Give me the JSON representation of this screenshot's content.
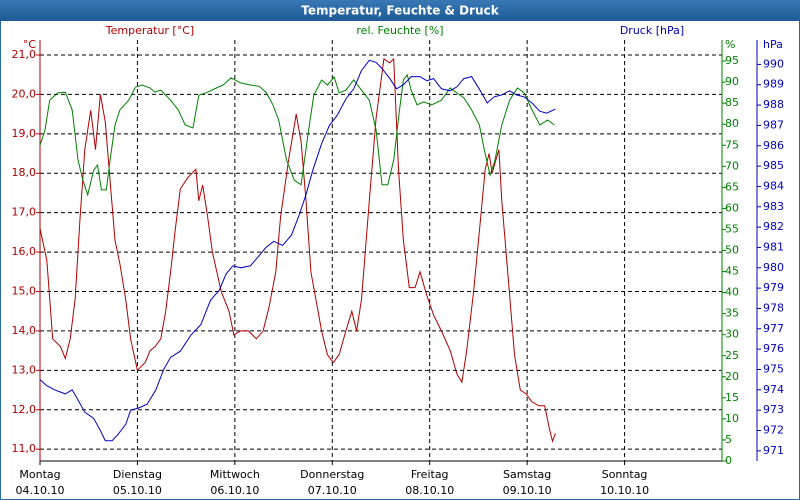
{
  "chart_data": {
    "type": "line",
    "title": "Temperatur, Feuchte & Druck",
    "xlim": [
      0,
      7
    ],
    "xticks": [
      {
        "value": 0,
        "label": "Montag"
      },
      {
        "value": 1,
        "label": "Dienstag"
      },
      {
        "value": 2,
        "label": "Mittwoch"
      },
      {
        "value": 3,
        "label": "Donnerstag"
      },
      {
        "value": 4,
        "label": "Freitag"
      },
      {
        "value": 5,
        "label": "Samstag"
      },
      {
        "value": 6,
        "label": "Sonntag"
      }
    ],
    "xtick_dates": [
      "04.10.10",
      "05.10.10",
      "06.10.10",
      "07.10.10",
      "08.10.10",
      "09.10.10",
      "10.10.10"
    ],
    "grid": true,
    "y_unit": "°C",
    "y2_unit": "%",
    "y3_unit": "hPa",
    "ylim": [
      10.7,
      21.38
    ],
    "yticks": [
      {
        "value": 11,
        "label": "11,0"
      },
      {
        "value": 12,
        "label": "12,0"
      },
      {
        "value": 13,
        "label": "13,0"
      },
      {
        "value": 14,
        "label": "14,0"
      },
      {
        "value": 15,
        "label": "15,0"
      },
      {
        "value": 16,
        "label": "16,0"
      },
      {
        "value": 17,
        "label": "17,0"
      },
      {
        "value": 18,
        "label": "18,0"
      },
      {
        "value": 19,
        "label": "19,0"
      },
      {
        "value": 20,
        "label": "20,0"
      },
      {
        "value": 21,
        "label": "21,0"
      }
    ],
    "y2lim": [
      0,
      100
    ],
    "y2ticks": [
      0,
      5,
      10,
      15,
      20,
      25,
      30,
      35,
      40,
      45,
      50,
      55,
      60,
      65,
      70,
      75,
      80,
      85,
      90,
      95
    ],
    "y3lim": [
      970.5,
      991.2
    ],
    "y3ticks": [
      971,
      972,
      973,
      974,
      975,
      976,
      977,
      978,
      979,
      980,
      981,
      982,
      983,
      984,
      985,
      986,
      987,
      988,
      989,
      990
    ],
    "series": [
      {
        "name": "Temperatur [°C]",
        "color": "#b00000",
        "axis": "y",
        "x": [
          0,
          0.07,
          0.13,
          0.21,
          0.26,
          0.31,
          0.36,
          0.41,
          0.46,
          0.52,
          0.57,
          0.62,
          0.67,
          0.72,
          0.77,
          0.82,
          0.88,
          0.93,
          1.0,
          1.08,
          1.13,
          1.18,
          1.24,
          1.29,
          1.34,
          1.39,
          1.44,
          1.52,
          1.6,
          1.63,
          1.67,
          1.72,
          1.77,
          1.86,
          1.94,
          1.99,
          2.06,
          2.14,
          2.22,
          2.29,
          2.35,
          2.42,
          2.47,
          2.55,
          2.63,
          2.68,
          2.73,
          2.78,
          2.89,
          2.95,
          3.01,
          3.07,
          3.14,
          3.2,
          3.25,
          3.3,
          3.38,
          3.45,
          3.53,
          3.59,
          3.63,
          3.68,
          3.73,
          3.79,
          3.85,
          3.9,
          3.97,
          4.04,
          4.12,
          4.21,
          4.28,
          4.33,
          4.38,
          4.45,
          4.52,
          4.57,
          4.61,
          4.64,
          4.71,
          4.74,
          4.8,
          4.87,
          4.93,
          4.99,
          5.05,
          5.12,
          5.18,
          5.23,
          5.26,
          5.29
        ],
        "values": [
          16.6,
          15.8,
          13.8,
          13.6,
          13.3,
          13.8,
          14.8,
          16.8,
          18.6,
          19.6,
          18.6,
          20.0,
          19.3,
          17.8,
          16.3,
          15.7,
          14.8,
          13.8,
          13.0,
          13.2,
          13.5,
          13.6,
          13.8,
          14.5,
          15.5,
          16.6,
          17.6,
          17.9,
          18.1,
          17.3,
          17.7,
          16.9,
          16.0,
          15.0,
          14.5,
          13.9,
          14.0,
          14.0,
          13.8,
          14.0,
          14.6,
          15.5,
          16.9,
          18.3,
          19.5,
          18.8,
          17.3,
          15.5,
          14.0,
          13.4,
          13.2,
          13.4,
          14.0,
          14.5,
          14.0,
          14.8,
          17.3,
          19.4,
          20.9,
          20.8,
          20.9,
          18.1,
          16.3,
          15.1,
          15.1,
          15.5,
          14.9,
          14.4,
          14.0,
          13.5,
          12.9,
          12.7,
          13.5,
          15.0,
          16.8,
          18.1,
          18.5,
          18.0,
          18.6,
          17.3,
          15.5,
          13.4,
          12.5,
          12.4,
          12.2,
          12.1,
          12.1,
          11.5,
          11.2,
          11.4
        ]
      },
      {
        "name": "rel. Feuchte [%]",
        "color": "#008000",
        "axis": "y2",
        "x": [
          0,
          0.05,
          0.1,
          0.18,
          0.26,
          0.33,
          0.39,
          0.44,
          0.49,
          0.55,
          0.59,
          0.63,
          0.68,
          0.72,
          0.77,
          0.82,
          0.91,
          0.98,
          1.05,
          1.13,
          1.18,
          1.24,
          1.29,
          1.34,
          1.42,
          1.49,
          1.57,
          1.63,
          1.72,
          1.81,
          1.88,
          1.96,
          2.06,
          2.16,
          2.25,
          2.32,
          2.39,
          2.45,
          2.53,
          2.61,
          2.68,
          2.75,
          2.81,
          2.89,
          2.95,
          3.02,
          3.07,
          3.14,
          3.22,
          3.3,
          3.38,
          3.45,
          3.51,
          3.57,
          3.63,
          3.69,
          3.73,
          3.77,
          3.81,
          3.87,
          3.94,
          4.02,
          4.12,
          4.21,
          4.28,
          4.35,
          4.43,
          4.51,
          4.56,
          4.62,
          4.67,
          4.74,
          4.82,
          4.9,
          4.97,
          5.05,
          5.13,
          5.21,
          5.28
        ],
        "values": [
          75,
          78.5,
          85.7,
          87.4,
          87.6,
          83.4,
          71.5,
          66.7,
          63.2,
          69,
          70.3,
          64.4,
          64.4,
          71.5,
          79.8,
          83.4,
          85.7,
          88.8,
          89.3,
          88.6,
          87.6,
          88.1,
          86.9,
          85.7,
          83.4,
          79.8,
          79.1,
          86.9,
          87.6,
          88.6,
          89.3,
          91,
          89.8,
          89.3,
          89,
          87.6,
          84.6,
          81,
          71.5,
          66.7,
          65.6,
          77.4,
          86.9,
          90.5,
          89.3,
          91.2,
          87.4,
          88.1,
          90.5,
          88.1,
          85.7,
          78.6,
          65.6,
          65.6,
          71.5,
          83.4,
          90.5,
          91.7,
          88.1,
          84.6,
          85.3,
          84.6,
          85.7,
          88.6,
          87.4,
          86.3,
          83.4,
          79.8,
          73.9,
          67.9,
          71.5,
          79.8,
          85.7,
          88.6,
          87.4,
          83.4,
          79.8,
          81,
          79.8
        ]
      },
      {
        "name": "Druck [hPa]",
        "color": "#0000c0",
        "axis": "y3",
        "x": [
          0,
          0.07,
          0.15,
          0.26,
          0.33,
          0.39,
          0.46,
          0.55,
          0.62,
          0.67,
          0.74,
          0.8,
          0.88,
          0.93,
          1.01,
          1.1,
          1.19,
          1.27,
          1.34,
          1.44,
          1.55,
          1.65,
          1.75,
          1.84,
          1.91,
          1.98,
          2.06,
          2.16,
          2.25,
          2.32,
          2.4,
          2.49,
          2.58,
          2.66,
          2.73,
          2.8,
          2.89,
          2.97,
          3.05,
          3.14,
          3.22,
          3.3,
          3.38,
          3.45,
          3.51,
          3.59,
          3.66,
          3.73,
          3.81,
          3.9,
          3.97,
          4.04,
          4.12,
          4.21,
          4.28,
          4.35,
          4.43,
          4.52,
          4.59,
          4.66,
          4.74,
          4.82,
          4.89,
          4.97,
          5.05,
          5.13,
          5.2,
          5.29
        ],
        "values": [
          974.5,
          974.2,
          974,
          973.8,
          974,
          973.5,
          972.9,
          972.6,
          972,
          971.5,
          971.5,
          971.8,
          972.3,
          973,
          973.1,
          973.3,
          974,
          975,
          975.6,
          975.9,
          976.7,
          977.2,
          978.4,
          978.9,
          979.7,
          980.1,
          980,
          980.1,
          980.6,
          981,
          981.3,
          981.1,
          981.6,
          982.6,
          983.6,
          984.8,
          986.1,
          987,
          987.5,
          988.3,
          988.8,
          989.7,
          990.2,
          990.1,
          989.8,
          989.3,
          988.8,
          989,
          989.4,
          989.4,
          989.2,
          989.3,
          988.8,
          988.7,
          988.9,
          989.3,
          989.4,
          988.7,
          988.1,
          988.4,
          988.5,
          988.7,
          988.5,
          988.4,
          988.1,
          987.7,
          987.6,
          987.8
        ]
      }
    ]
  }
}
